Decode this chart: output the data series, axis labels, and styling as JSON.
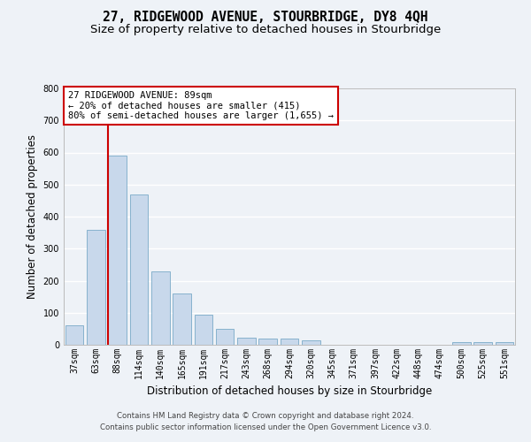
{
  "title": "27, RIDGEWOOD AVENUE, STOURBRIDGE, DY8 4QH",
  "subtitle": "Size of property relative to detached houses in Stourbridge",
  "xlabel": "Distribution of detached houses by size in Stourbridge",
  "ylabel": "Number of detached properties",
  "categories": [
    "37sqm",
    "63sqm",
    "88sqm",
    "114sqm",
    "140sqm",
    "165sqm",
    "191sqm",
    "217sqm",
    "243sqm",
    "268sqm",
    "294sqm",
    "320sqm",
    "345sqm",
    "371sqm",
    "397sqm",
    "422sqm",
    "448sqm",
    "474sqm",
    "500sqm",
    "525sqm",
    "551sqm"
  ],
  "values": [
    60,
    360,
    590,
    470,
    230,
    160,
    95,
    50,
    22,
    20,
    20,
    15,
    0,
    0,
    0,
    0,
    0,
    0,
    8,
    8,
    8
  ],
  "bar_color": "#c8d8eb",
  "bar_edge_color": "#7aaac8",
  "highlight_bar_index": 2,
  "highlight_line_color": "#cc0000",
  "ylim": [
    0,
    800
  ],
  "yticks": [
    0,
    100,
    200,
    300,
    400,
    500,
    600,
    700,
    800
  ],
  "annotation_text": "27 RIDGEWOOD AVENUE: 89sqm\n← 20% of detached houses are smaller (415)\n80% of semi-detached houses are larger (1,655) →",
  "annotation_box_color": "#ffffff",
  "annotation_box_edge": "#cc0000",
  "footer_line1": "Contains HM Land Registry data © Crown copyright and database right 2024.",
  "footer_line2": "Contains public sector information licensed under the Open Government Licence v3.0.",
  "background_color": "#eef2f7",
  "grid_color": "#ffffff",
  "title_fontsize": 10.5,
  "subtitle_fontsize": 9.5,
  "tick_fontsize": 7,
  "ylabel_fontsize": 8.5,
  "xlabel_fontsize": 8.5,
  "annotation_fontsize": 7.5,
  "footer_fontsize": 6.2
}
